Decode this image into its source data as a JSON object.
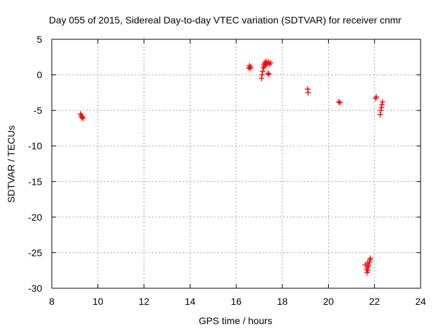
{
  "chart_data": {
    "type": "scatter",
    "title": "Day 055 of 2015, Sidereal Day-to-day VTEC variation (SDTVAR) for receiver cnmr",
    "xlabel": "GPS time / hours",
    "ylabel": "SDTVAR / TECUs",
    "xlim": [
      8,
      24
    ],
    "ylim": [
      -30,
      5
    ],
    "xticks": [
      8,
      10,
      12,
      14,
      16,
      18,
      20,
      22,
      24
    ],
    "yticks": [
      -30,
      -25,
      -20,
      -15,
      -10,
      -5,
      0,
      5
    ],
    "grid": true,
    "marker": "plus",
    "color": "#ff0000",
    "series": [
      {
        "name": "SDTVAR",
        "points": [
          [
            9.25,
            -5.5
          ],
          [
            9.3,
            -5.9
          ],
          [
            9.35,
            -6.1
          ],
          [
            9.28,
            -5.7
          ],
          [
            9.32,
            -6.0
          ],
          [
            16.55,
            1.0
          ],
          [
            16.58,
            1.3
          ],
          [
            16.6,
            0.9
          ],
          [
            16.62,
            1.1
          ],
          [
            17.1,
            -0.5
          ],
          [
            17.12,
            0.0
          ],
          [
            17.15,
            0.5
          ],
          [
            17.18,
            1.0
          ],
          [
            17.2,
            1.5
          ],
          [
            17.25,
            1.7
          ],
          [
            17.3,
            1.9
          ],
          [
            17.35,
            1.6
          ],
          [
            17.4,
            1.8
          ],
          [
            17.45,
            1.5
          ],
          [
            17.5,
            1.7
          ],
          [
            17.22,
            1.2
          ],
          [
            17.28,
            1.4
          ],
          [
            17.38,
            0.2
          ],
          [
            17.42,
            0.1
          ],
          [
            19.1,
            -2.0
          ],
          [
            19.12,
            -2.5
          ],
          [
            20.45,
            -3.8
          ],
          [
            20.5,
            -3.9
          ],
          [
            21.6,
            -26.7
          ],
          [
            21.65,
            -27.3
          ],
          [
            21.68,
            -27.8
          ],
          [
            21.7,
            -27.0
          ],
          [
            21.72,
            -27.5
          ],
          [
            21.75,
            -26.8
          ],
          [
            21.78,
            -26.3
          ],
          [
            21.8,
            -26.0
          ],
          [
            21.82,
            -25.8
          ],
          [
            21.7,
            -26.5
          ],
          [
            22.05,
            -3.3
          ],
          [
            22.08,
            -3.1
          ],
          [
            22.25,
            -5.6
          ],
          [
            22.28,
            -5.0
          ],
          [
            22.3,
            -4.6
          ],
          [
            22.32,
            -4.2
          ],
          [
            22.35,
            -3.8
          ]
        ]
      }
    ]
  }
}
